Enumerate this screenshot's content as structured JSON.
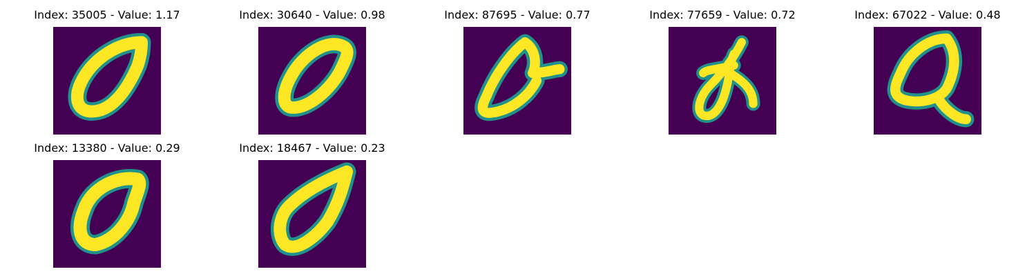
{
  "colors": {
    "background": "#440154",
    "mid": "#21918c",
    "stroke": "#fde725"
  },
  "panels": [
    {
      "title": "Index: 35005 - Value: 1.17",
      "icon": "handwritten-zero-glyph"
    },
    {
      "title": "Index: 30640 - Value: 0.98",
      "icon": "handwritten-zero-glyph"
    },
    {
      "title": "Index: 87695 - Value: 0.77",
      "icon": "handwritten-zero-with-tail-glyph"
    },
    {
      "title": "Index: 77659 - Value: 0.72",
      "icon": "handwritten-loop-glyph"
    },
    {
      "title": "Index: 67022 - Value: 0.48",
      "icon": "handwritten-q-glyph"
    },
    {
      "title": "Index: 13380 - Value: 0.29",
      "icon": "handwritten-zero-glyph"
    },
    {
      "title": "Index: 18467 - Value: 0.23",
      "icon": "handwritten-zero-glyph"
    }
  ]
}
